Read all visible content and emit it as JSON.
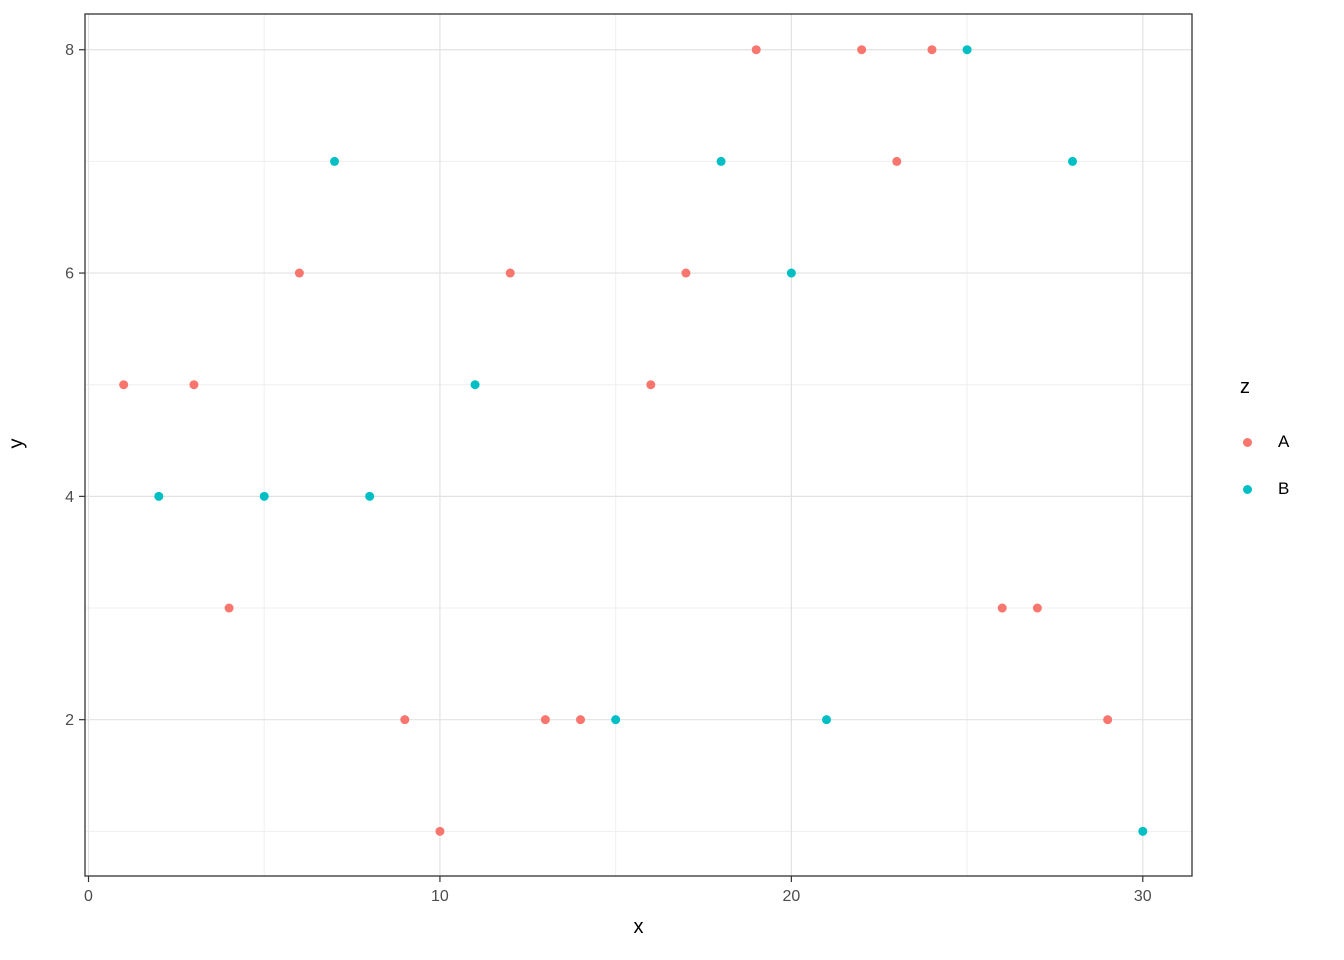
{
  "chart_data": {
    "type": "scatter",
    "title": "",
    "xlabel": "x",
    "ylabel": "y",
    "legend_title": "z",
    "legend_position": "right",
    "grid": true,
    "xlim": [
      -0.1,
      31.4
    ],
    "ylim": [
      0.6,
      8.32
    ],
    "x_ticks": [
      0,
      10,
      20,
      30
    ],
    "y_ticks": [
      2,
      4,
      6,
      8
    ],
    "x_minor_ticks": [
      5,
      15,
      25
    ],
    "y_minor_ticks": [
      1,
      3,
      5,
      7
    ],
    "series": [
      {
        "name": "A",
        "color": "#F8766D",
        "points": [
          [
            1,
            5
          ],
          [
            3,
            5
          ],
          [
            4,
            3
          ],
          [
            6,
            6
          ],
          [
            9,
            2
          ],
          [
            10,
            1
          ],
          [
            12,
            6
          ],
          [
            13,
            2
          ],
          [
            14,
            2
          ],
          [
            16,
            5
          ],
          [
            17,
            6
          ],
          [
            19,
            8
          ],
          [
            22,
            8
          ],
          [
            23,
            7
          ],
          [
            24,
            8
          ],
          [
            26,
            3
          ],
          [
            27,
            3
          ],
          [
            29,
            2
          ]
        ]
      },
      {
        "name": "B",
        "color": "#00BFC4",
        "points": [
          [
            2,
            4
          ],
          [
            5,
            4
          ],
          [
            7,
            7
          ],
          [
            8,
            4
          ],
          [
            11,
            5
          ],
          [
            15,
            2
          ],
          [
            18,
            7
          ],
          [
            20,
            6
          ],
          [
            21,
            2
          ],
          [
            25,
            8
          ],
          [
            28,
            7
          ],
          [
            30,
            1
          ]
        ]
      }
    ],
    "panel": {
      "background_color": "#FFFFFF",
      "border_color": "#333333",
      "grid_major_color": "#E2E2E2",
      "grid_minor_color": "#EFEFEF",
      "tick_label_color": "#4D4D4D"
    }
  }
}
